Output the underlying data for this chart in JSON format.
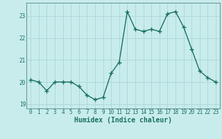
{
  "x": [
    0,
    1,
    2,
    3,
    4,
    5,
    6,
    7,
    8,
    9,
    10,
    11,
    12,
    13,
    14,
    15,
    16,
    17,
    18,
    19,
    20,
    21,
    22,
    23
  ],
  "y": [
    20.1,
    20.0,
    19.6,
    20.0,
    20.0,
    20.0,
    19.8,
    19.4,
    19.2,
    19.3,
    20.4,
    20.9,
    23.2,
    22.4,
    22.3,
    22.4,
    22.3,
    23.1,
    23.2,
    22.5,
    21.5,
    20.5,
    20.2,
    20.0
  ],
  "line_color": "#1a7060",
  "marker": "+",
  "markersize": 4,
  "linewidth": 1.0,
  "markeredgewidth": 1.0,
  "background_color": "#c8ecec",
  "grid_color": "#b0d8d8",
  "xlabel": "Humidex (Indice chaleur)",
  "xlim": [
    -0.5,
    23.5
  ],
  "ylim": [
    18.8,
    23.6
  ],
  "yticks": [
    19,
    20,
    21,
    22,
    23
  ],
  "xticks": [
    0,
    1,
    2,
    3,
    4,
    5,
    6,
    7,
    8,
    9,
    10,
    11,
    12,
    13,
    14,
    15,
    16,
    17,
    18,
    19,
    20,
    21,
    22,
    23
  ],
  "tick_fontsize": 5.5,
  "xlabel_fontsize": 7,
  "spine_color": "#6a9a9a"
}
